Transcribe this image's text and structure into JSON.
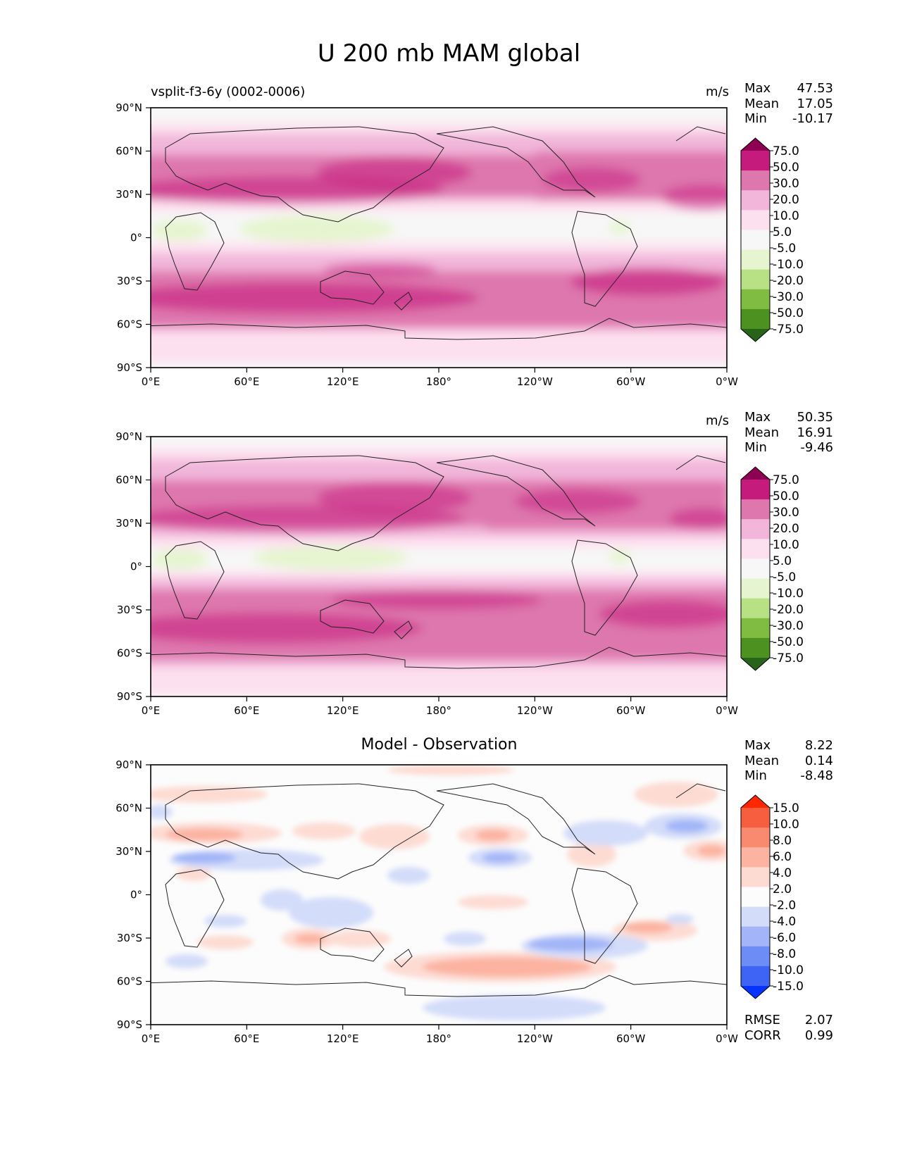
{
  "title": "U 200 mb MAM global",
  "colors": {
    "test_ref": [
      "#276419",
      "#4d9221",
      "#7fbc41",
      "#b8e186",
      "#e6f5d0",
      "#f7f7f7",
      "#fde0ef",
      "#f1b6da",
      "#de77ae",
      "#c51b7d",
      "#8e0152"
    ],
    "diff": [
      "#0433ff",
      "#3e64f5",
      "#6e8cf6",
      "#a3b5f8",
      "#d3dcf9",
      "#fcfcfc",
      "#fddbd3",
      "#fcb3a1",
      "#f98a6f",
      "#f65e3f",
      "#ff2600"
    ]
  },
  "panels": [
    {
      "name": "test",
      "left_title": "vsplit-f3-6y (0002-0006)",
      "center_title": "",
      "units": "m/s",
      "stats": [
        {
          "label": "Max",
          "value": "47.53"
        },
        {
          "label": "Mean",
          "value": "17.05"
        },
        {
          "label": "Min",
          "value": "-10.17"
        }
      ],
      "colorbar_ticks": [
        "75.0",
        "50.0",
        "30.0",
        "20.0",
        "10.0",
        "5.0",
        "-5.0",
        "-10.0",
        "-20.0",
        "-30.0",
        "-50.0",
        "-75.0"
      ],
      "palette": "test_ref"
    },
    {
      "name": "reference",
      "left_title": "",
      "center_title": "",
      "units": "m/s",
      "stats": [
        {
          "label": "Max",
          "value": "50.35"
        },
        {
          "label": "Mean",
          "value": "16.91"
        },
        {
          "label": "Min",
          "value": "-9.46"
        }
      ],
      "colorbar_ticks": [
        "75.0",
        "50.0",
        "30.0",
        "20.0",
        "10.0",
        "5.0",
        "-5.0",
        "-10.0",
        "-20.0",
        "-30.0",
        "-50.0",
        "-75.0"
      ],
      "palette": "test_ref"
    },
    {
      "name": "difference",
      "left_title": "",
      "center_title": "Model - Observation",
      "units": "",
      "stats": [
        {
          "label": "Max",
          "value": "8.22"
        },
        {
          "label": "Mean",
          "value": "0.14"
        },
        {
          "label": "Min",
          "value": "-8.48"
        }
      ],
      "colorbar_ticks": [
        "15.0",
        "10.0",
        "8.0",
        "6.0",
        "4.0",
        "2.0",
        "-2.0",
        "-4.0",
        "-6.0",
        "-8.0",
        "-10.0",
        "-15.0"
      ],
      "palette": "diff",
      "metrics": [
        {
          "label": "RMSE",
          "value": "2.07"
        },
        {
          "label": "CORR",
          "value": "0.99"
        }
      ]
    }
  ],
  "axes": {
    "x_ticks": [
      "0°E",
      "60°E",
      "120°E",
      "180°",
      "120°W",
      "60°W",
      "0°W"
    ],
    "y_ticks": [
      "90°N",
      "60°N",
      "30°N",
      "0°",
      "30°S",
      "60°S",
      "90°S"
    ]
  }
}
